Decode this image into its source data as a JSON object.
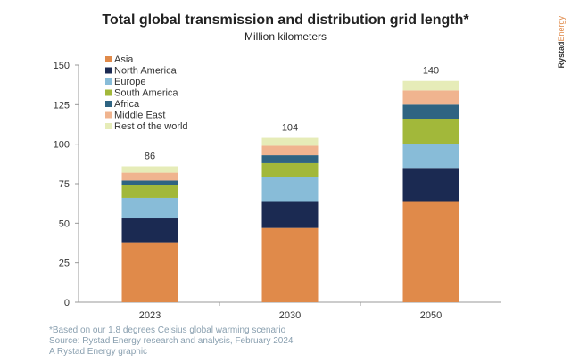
{
  "chart_data": {
    "type": "bar",
    "stacked": true,
    "title": "Total global transmission and distribution grid length*",
    "subtitle": "Million kilometers",
    "categories": [
      "2023",
      "2030",
      "2050"
    ],
    "totals": [
      86,
      104,
      140
    ],
    "ylim": [
      0,
      150
    ],
    "yticks": [
      0,
      25,
      50,
      75,
      100,
      125,
      150
    ],
    "grid": false,
    "legend_position": "top-left",
    "series": [
      {
        "name": "Asia",
        "color": "#e08a4a",
        "values": [
          38,
          47,
          64
        ]
      },
      {
        "name": "North America",
        "color": "#1b2a52",
        "values": [
          15,
          17,
          21
        ]
      },
      {
        "name": "Europe",
        "color": "#88bcd8",
        "values": [
          13,
          15,
          15
        ]
      },
      {
        "name": "South America",
        "color": "#a2b83a",
        "values": [
          8,
          9,
          16
        ]
      },
      {
        "name": "Africa",
        "color": "#2f6482",
        "values": [
          3,
          5,
          9
        ]
      },
      {
        "name": "Middle East",
        "color": "#f0b48f",
        "values": [
          5,
          6,
          9
        ]
      },
      {
        "name": "Rest of the world",
        "color": "#e6ecb8",
        "values": [
          4,
          5,
          6
        ]
      }
    ]
  },
  "logo": {
    "brand": "Rystad",
    "suffix": "Energy"
  },
  "notes": [
    "*Based on our 1.8 degrees Celsius global warming scenario",
    "Source: Rystad Energy research and analysis, February 2024",
    "A Rystad Energy graphic"
  ]
}
